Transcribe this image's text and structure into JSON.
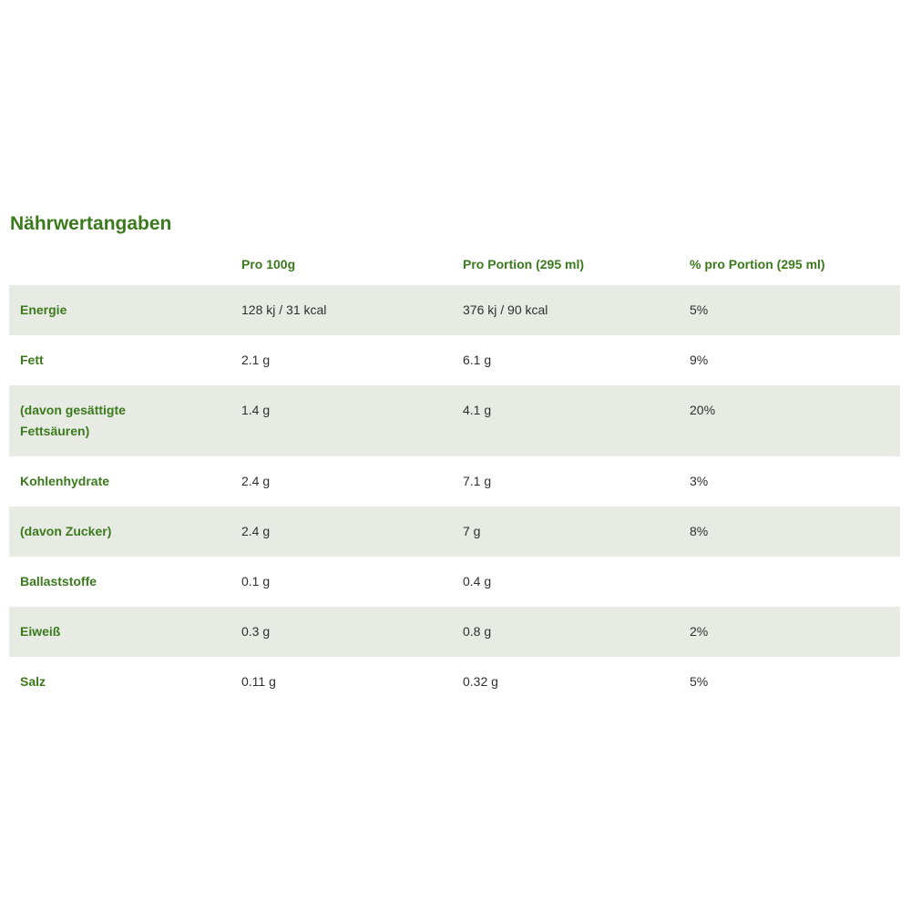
{
  "page": {
    "title": "Nährwertangaben"
  },
  "table": {
    "headers": [
      "",
      "Pro 100g",
      "Pro Portion (295 ml)",
      "% pro Portion (295 ml)"
    ],
    "rows": [
      {
        "label": "Energie",
        "per100g": "128 kj / 31 kcal",
        "perPortion": "376 kj / 90 kcal",
        "percent": "5%"
      },
      {
        "label": "Fett",
        "per100g": "2.1 g",
        "perPortion": "6.1 g",
        "percent": "9%"
      },
      {
        "label": "(davon gesättigte Fettsäuren)",
        "per100g": "1.4 g",
        "perPortion": "4.1 g",
        "percent": "20%"
      },
      {
        "label": "Kohlenhydrate",
        "per100g": "2.4 g",
        "perPortion": "7.1 g",
        "percent": "3%"
      },
      {
        "label": "(davon Zucker)",
        "per100g": "2.4 g",
        "perPortion": "7 g",
        "percent": "8%"
      },
      {
        "label": "Ballaststoffe",
        "per100g": "0.1 g",
        "perPortion": "0.4 g",
        "percent": ""
      },
      {
        "label": "Eiweiß",
        "per100g": "0.3 g",
        "perPortion": "0.8 g",
        "percent": "2%"
      },
      {
        "label": "Salz",
        "per100g": "0.11 g",
        "perPortion": "0.32 g",
        "percent": "5%"
      }
    ]
  },
  "colors": {
    "accent_green": "#3a7a1c",
    "row_stripe": "#e8ebe3",
    "value_text": "#2f2f2f"
  }
}
